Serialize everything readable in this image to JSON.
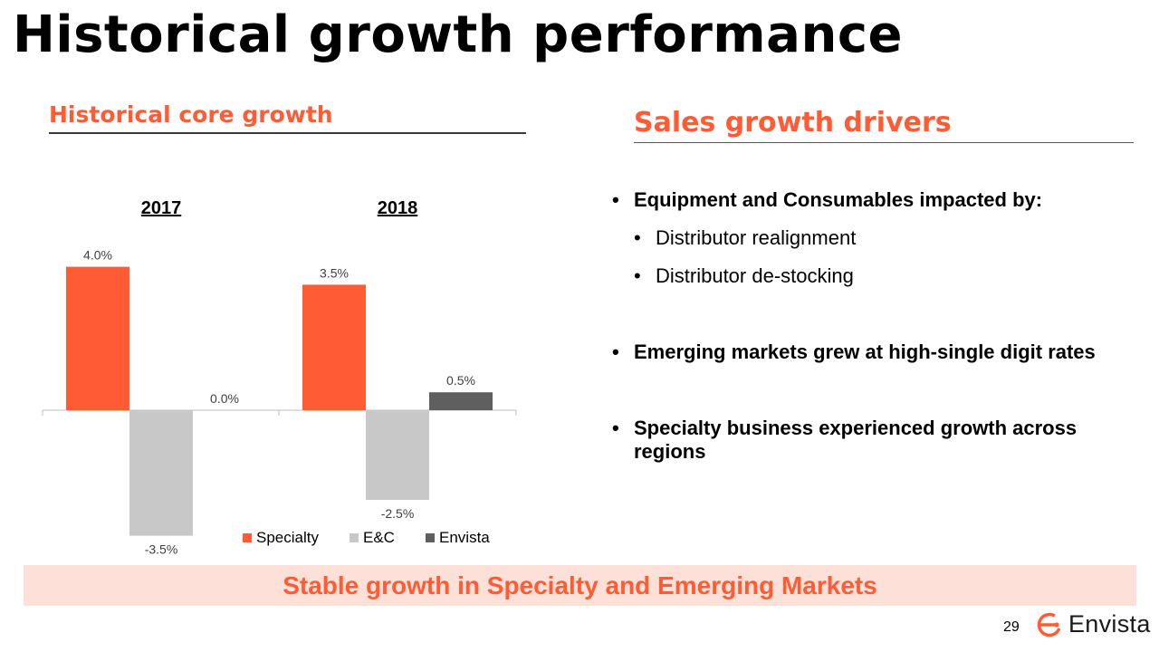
{
  "title": "Historical growth performance",
  "left_section": {
    "heading": "Historical core growth"
  },
  "right_section": {
    "heading": "Sales growth drivers",
    "bullets": [
      {
        "text": "Equipment and Consumables impacted by:",
        "bold": true
      },
      {
        "text": "Distributor realignment",
        "sub": true
      },
      {
        "text": "Distributor de-stocking",
        "sub": true
      },
      {
        "text": "Emerging markets grew at high-single digit rates",
        "bold": true
      },
      {
        "text": "Specialty business experienced growth across regions",
        "bold": true
      }
    ]
  },
  "banner": {
    "text": "Stable growth in Specialty and Emerging Markets"
  },
  "footer": {
    "page_number": "29",
    "brand": "Envista"
  },
  "colors": {
    "accent": "#FF5C35",
    "specialty": "#FF5C35",
    "ec": "#C8C8C8",
    "envista": "#5F5F5F",
    "banner_bg": "#FDE0D8"
  },
  "chart_data": {
    "type": "bar",
    "title": "Historical core growth",
    "categories": [
      "2017",
      "2018"
    ],
    "series": [
      {
        "name": "Specialty",
        "values": [
          4.0,
          3.5
        ],
        "labels": [
          "4.0%",
          "3.5%"
        ]
      },
      {
        "name": "E&C",
        "values": [
          -3.5,
          -2.5
        ],
        "labels": [
          "-3.5%",
          "-2.5%"
        ]
      },
      {
        "name": "Envista",
        "values": [
          0.0,
          0.5
        ],
        "labels": [
          "0.0%",
          "0.5%"
        ]
      }
    ],
    "xlabel": "",
    "ylabel": "",
    "ylim": [
      -3.5,
      4.0
    ],
    "legend": "bottom-right",
    "grid": false
  }
}
